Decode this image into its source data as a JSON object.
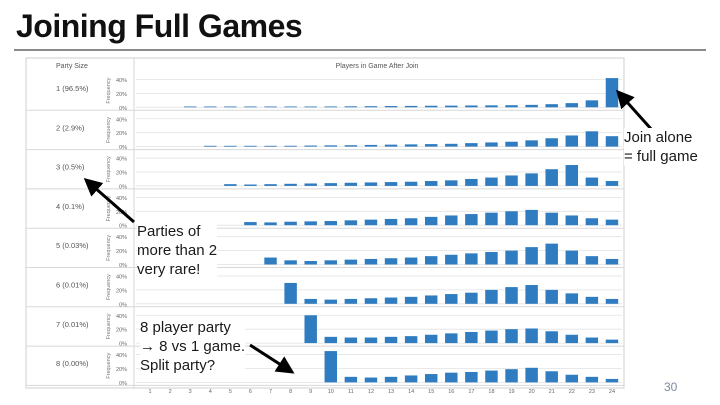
{
  "slide": {
    "title": "Joining Full Games",
    "page_number": "30"
  },
  "callouts": {
    "join_alone": [
      "Join alone",
      "= full game"
    ],
    "parties_rare": [
      "Parties of",
      "more than 2",
      "very rare!"
    ],
    "eight_party": [
      "8 player party",
      "→ 8 vs 1 game.",
      "Split party?"
    ]
  },
  "colors": {
    "bar": "#2f7cc0",
    "grid": "#e2e2e2",
    "axis_text": "#666666",
    "arrow": "#000000"
  },
  "chart_data": {
    "type": "bar",
    "title": "Players in Game After Join",
    "row_header": "Party Size",
    "y_axis_title": "Frequency",
    "y_ticks": [
      "40%",
      "20%",
      "0%"
    ],
    "ylim": [
      0,
      0.45
    ],
    "categories": [
      "1",
      "2",
      "3",
      "4",
      "5",
      "6",
      "7",
      "8",
      "9",
      "10",
      "11",
      "12",
      "13",
      "14",
      "15",
      "16",
      "17",
      "18",
      "19",
      "20",
      "21",
      "22",
      "23",
      "24"
    ],
    "panels": [
      {
        "label": "1 (96.5%)",
        "values": [
          0,
          0,
          0.003,
          0.004,
          0.005,
          0.006,
          0.007,
          0.008,
          0.01,
          0.012,
          0.014,
          0.016,
          0.018,
          0.02,
          0.022,
          0.024,
          0.026,
          0.028,
          0.03,
          0.035,
          0.045,
          0.06,
          0.1,
          0.42
        ]
      },
      {
        "label": "2 (2.9%)",
        "values": [
          0,
          0,
          0,
          0.005,
          0.006,
          0.008,
          0.01,
          0.012,
          0.015,
          0.018,
          0.02,
          0.024,
          0.028,
          0.032,
          0.036,
          0.04,
          0.05,
          0.06,
          0.07,
          0.09,
          0.12,
          0.16,
          0.22,
          0.15
        ]
      },
      {
        "label": "3 (0.5%)",
        "values": [
          0,
          0,
          0,
          0,
          0.025,
          0.02,
          0.025,
          0.03,
          0.035,
          0.04,
          0.045,
          0.05,
          0.055,
          0.06,
          0.07,
          0.08,
          0.1,
          0.12,
          0.15,
          0.18,
          0.24,
          0.3,
          0.12,
          0.07
        ]
      },
      {
        "label": "4 (0.1%)",
        "values": [
          0,
          0,
          0,
          0,
          0,
          0.045,
          0.04,
          0.05,
          0.055,
          0.06,
          0.07,
          0.08,
          0.09,
          0.1,
          0.12,
          0.14,
          0.16,
          0.18,
          0.2,
          0.22,
          0.18,
          0.14,
          0.1,
          0.08
        ]
      },
      {
        "label": "5 (0.03%)",
        "values": [
          0,
          0,
          0,
          0,
          0,
          0,
          0.1,
          0.06,
          0.05,
          0.06,
          0.07,
          0.08,
          0.09,
          0.1,
          0.12,
          0.14,
          0.16,
          0.18,
          0.2,
          0.25,
          0.3,
          0.2,
          0.12,
          0.08
        ]
      },
      {
        "label": "6 (0.01%)",
        "values": [
          0,
          0,
          0,
          0,
          0,
          0,
          0,
          0.3,
          0.07,
          0.06,
          0.07,
          0.08,
          0.09,
          0.1,
          0.12,
          0.14,
          0.16,
          0.2,
          0.24,
          0.27,
          0.2,
          0.15,
          0.1,
          0.07
        ]
      },
      {
        "label": "7 (0.01%)",
        "values": [
          0,
          0,
          0,
          0,
          0,
          0,
          0,
          0,
          0.4,
          0.09,
          0.08,
          0.08,
          0.09,
          0.1,
          0.12,
          0.14,
          0.16,
          0.18,
          0.2,
          0.21,
          0.17,
          0.12,
          0.08,
          0.05
        ]
      },
      {
        "label": "8 (0.00%)",
        "values": [
          0,
          0,
          0,
          0,
          0,
          0,
          0,
          0,
          0,
          0.45,
          0.08,
          0.07,
          0.08,
          0.1,
          0.12,
          0.14,
          0.15,
          0.17,
          0.19,
          0.21,
          0.16,
          0.11,
          0.08,
          0.05
        ]
      }
    ]
  }
}
